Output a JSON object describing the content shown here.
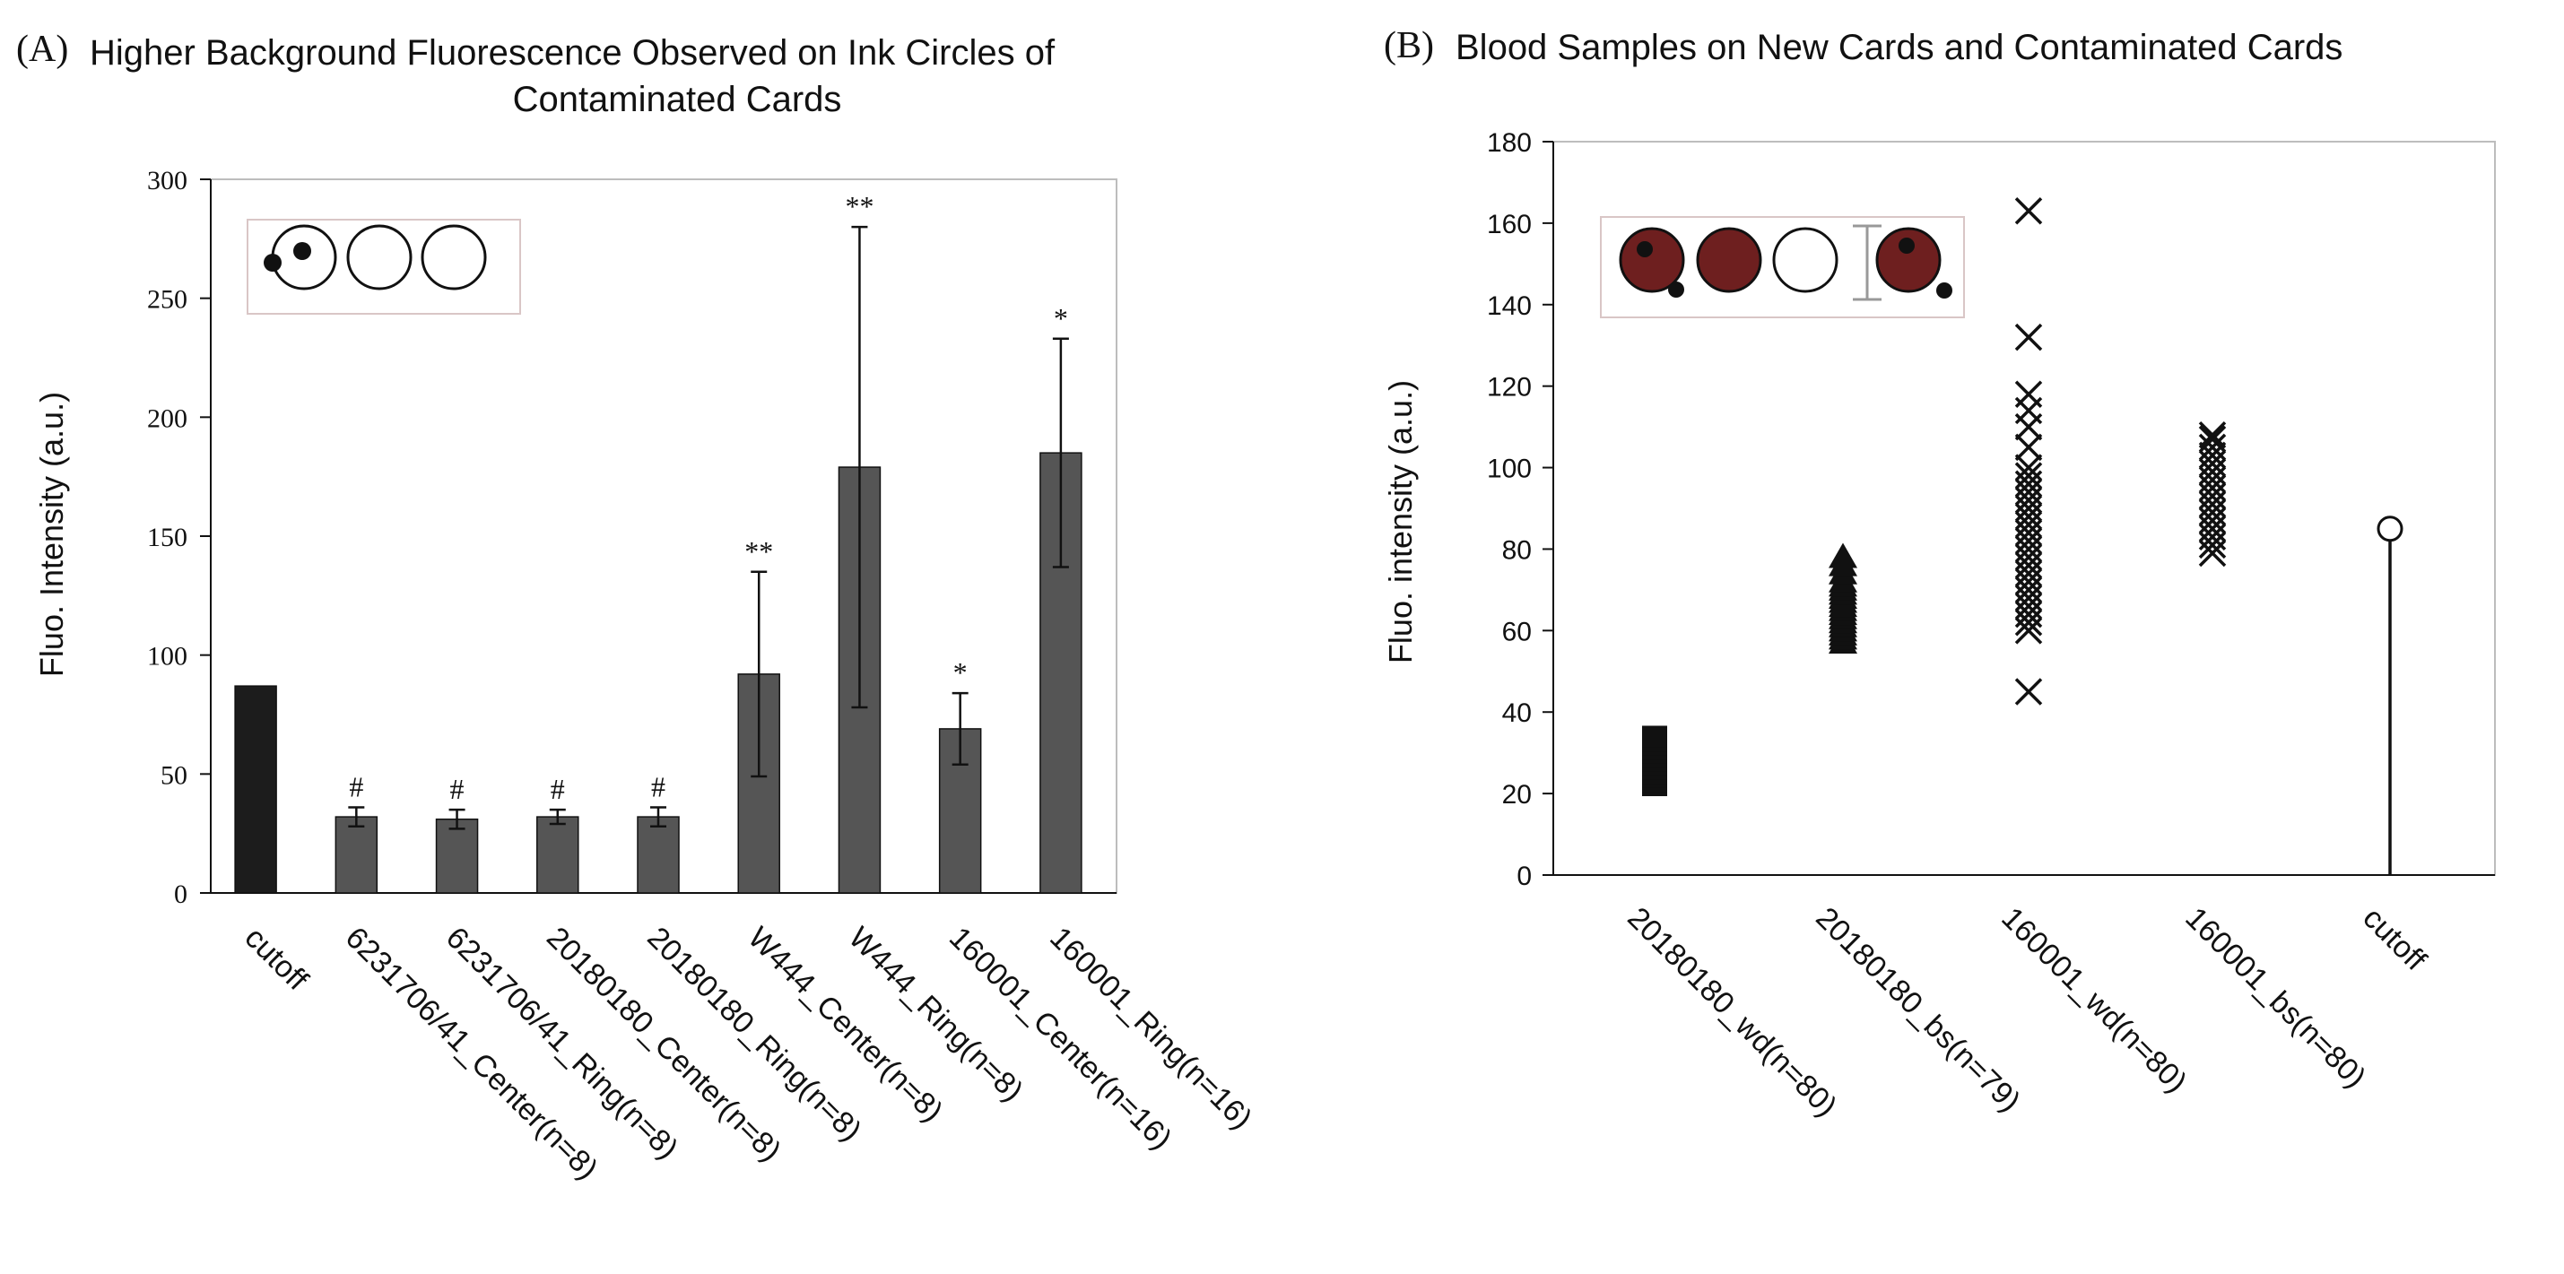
{
  "chart_data": [
    {
      "type": "bar",
      "panel": "(A)",
      "title_line1": "Higher Background Fluorescence Observed on Ink Circles of",
      "title_line2": "Contaminated Cards",
      "ylabel": "Fluo. Intensity (a.u.)",
      "xlabel": "",
      "ylim": [
        0,
        300
      ],
      "yticks": [
        "0",
        "50",
        "100",
        "150",
        "200",
        "250",
        "300"
      ],
      "categories": [
        "cutoff",
        "6231706/41_Center(n=8)",
        "6231706/41_Ring(n=8)",
        "20180180_Center(n=8)",
        "20180180_Ring(n=8)",
        "W444_Center(n=8)",
        "W444_Ring(n=8)",
        "160001_Center(n=16)",
        "160001_Ring(n=16)"
      ],
      "values": [
        87,
        32,
        31,
        32,
        32,
        92,
        179,
        69,
        185
      ],
      "errors": [
        0,
        4,
        4,
        3,
        4,
        43,
        101,
        15,
        48
      ],
      "annotations": [
        "",
        "#",
        "#",
        "#",
        "#",
        "**",
        "**",
        "*",
        "*"
      ],
      "colors": {
        "cutoff": "#1c1c1c",
        "bars": "#555555"
      },
      "grid": false
    },
    {
      "type": "scatter",
      "panel": "(B)",
      "title": "Blood Samples on New Cards and Contaminated Cards",
      "ylabel": "Fluo. intensity (a.u.)",
      "xlabel": "",
      "ylim": [
        0,
        180
      ],
      "yticks": [
        "0",
        "20",
        "40",
        "60",
        "80",
        "100",
        "120",
        "140",
        "160",
        "180"
      ],
      "categories": [
        "20180180_wd(n=80)",
        "20180180_bs(n=79)",
        "160001_wd(n=80)",
        "160001_bs(n=80)",
        "cutoff"
      ],
      "series": [
        {
          "name": "20180180_wd(n=80)",
          "marker": "square",
          "values": [
            22,
            23,
            24,
            25,
            26,
            27,
            28,
            29,
            30,
            31,
            32,
            33,
            34
          ]
        },
        {
          "name": "20180180_bs(n=79)",
          "marker": "triangle",
          "values": [
            57,
            58,
            59,
            60,
            61,
            62,
            63,
            64,
            65,
            66,
            67,
            68,
            69,
            70,
            71,
            72,
            74,
            76,
            78
          ]
        },
        {
          "name": "160001_wd(n=80)",
          "marker": "x",
          "values": [
            45,
            60,
            62,
            64,
            66,
            68,
            70,
            72,
            74,
            76,
            78,
            80,
            82,
            84,
            86,
            88,
            90,
            92,
            94,
            96,
            98,
            100,
            105,
            110,
            114,
            118,
            132,
            163
          ]
        },
        {
          "name": "160001_bs(n=80)",
          "marker": "x",
          "values": [
            79,
            81,
            83,
            85,
            87,
            89,
            91,
            93,
            95,
            97,
            99,
            101,
            103,
            105,
            107,
            108
          ]
        },
        {
          "name": "cutoff",
          "marker": "lollipop",
          "values": [
            85
          ]
        }
      ],
      "grid": false
    }
  ]
}
